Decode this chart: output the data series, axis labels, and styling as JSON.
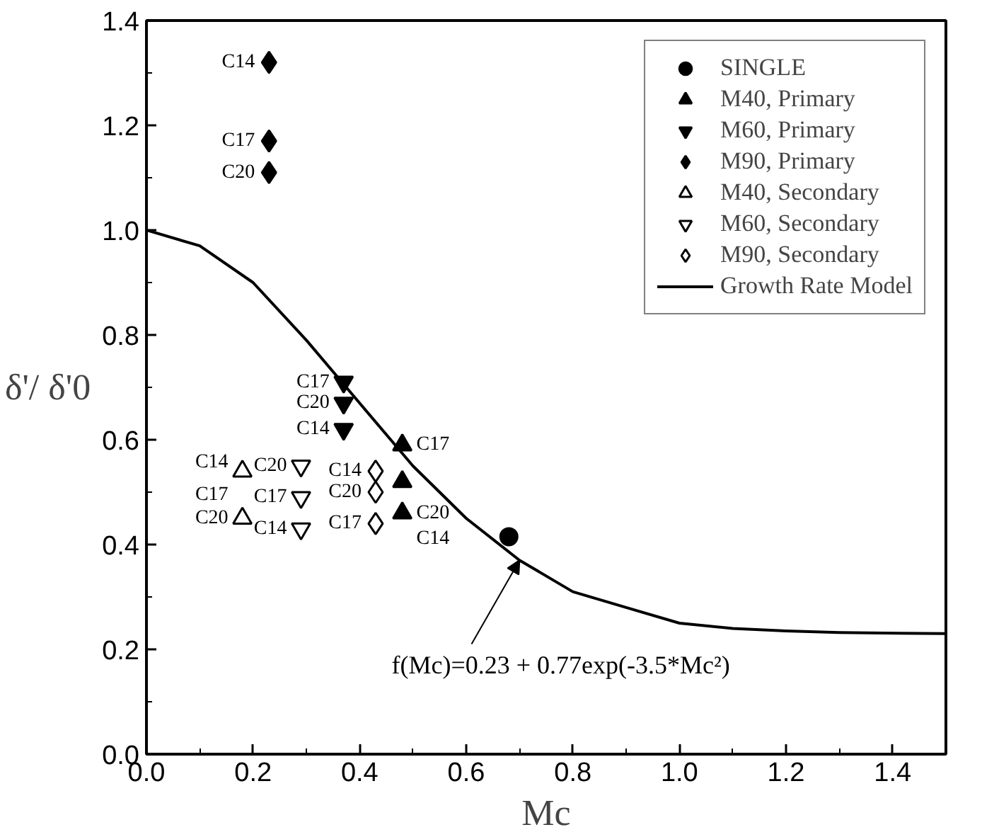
{
  "chart_data": {
    "type": "scatter",
    "xlabel": "Mc",
    "ylabel": "δ'/ δ'0",
    "xlim": [
      0,
      1.5
    ],
    "ylim": [
      0,
      1.4
    ],
    "xticks": [
      {
        "value": 0,
        "label": "0.0"
      },
      0.2,
      0.4,
      0.6,
      0.8,
      {
        "value": 1,
        "label": "1.0"
      },
      1.2,
      1.4
    ],
    "yticks": [
      {
        "value": 0,
        "label": "0.0"
      },
      0.2,
      0.4,
      0.6,
      0.8,
      {
        "value": 1,
        "label": "1.0"
      },
      1.2,
      1.4
    ],
    "grid": false,
    "legend": "top right",
    "series": [
      {
        "name": "SINGLE",
        "color": "#000000",
        "marker": "circle",
        "x": [
          0.68
        ],
        "values": [
          0.415
        ]
      },
      {
        "name": "M40, Primary",
        "color": "#000000",
        "marker": "triangle",
        "x": [
          0.48,
          0.48,
          0.48
        ],
        "values": [
          0.59,
          0.52,
          0.46
        ]
      },
      {
        "name": "M60, Primary",
        "color": "#000000",
        "marker": "triangle_down",
        "x": [
          0.37,
          0.37,
          0.37
        ],
        "values": [
          0.71,
          0.67,
          0.62
        ]
      },
      {
        "name": "M90, Primary",
        "color": "#000000",
        "marker": "diamond",
        "x": [
          0.23,
          0.23,
          0.23
        ],
        "values": [
          1.32,
          1.17,
          1.11
        ]
      },
      {
        "name": "M40, Secondary",
        "color": "#000000",
        "marker": "triangle_open",
        "x": [
          0.18,
          0.18
        ],
        "values": [
          0.54,
          0.45
        ]
      },
      {
        "name": "M60, Secondary",
        "color": "#000000",
        "marker": "triangle_down_open",
        "x": [
          0.29,
          0.29,
          0.29
        ],
        "values": [
          0.55,
          0.49,
          0.43
        ]
      },
      {
        "name": "M90, Secondary",
        "color": "#000000",
        "marker": "diamond_open",
        "x": [
          0.43,
          0.43,
          0.43
        ],
        "values": [
          0.54,
          0.5,
          0.44
        ]
      },
      {
        "name": "Growth Rate Model",
        "type": "line",
        "color": "#000000",
        "line_style": "solid",
        "x": [
          0,
          0.1,
          0.2,
          0.3,
          0.4,
          0.5,
          0.6,
          0.7,
          0.8,
          0.9,
          1.0,
          1.1,
          1.2,
          1.3,
          1.5
        ],
        "values": [
          1.0,
          0.97,
          0.9,
          0.79,
          0.67,
          0.55,
          0.45,
          0.37,
          0.31,
          0.28,
          0.25,
          0.24,
          0.235,
          0.232,
          0.23
        ]
      }
    ],
    "annotations": [
      {
        "text": "C14",
        "x": 0.23,
        "y": 1.32
      },
      {
        "text": "C17",
        "x": 0.23,
        "y": 1.17
      },
      {
        "text": "C20",
        "x": 0.23,
        "y": 1.11
      },
      {
        "text": "C17",
        "x": 0.37,
        "y": 0.71
      },
      {
        "text": "C20",
        "x": 0.37,
        "y": 0.67
      },
      {
        "text": "C14",
        "x": 0.37,
        "y": 0.62
      },
      {
        "text": "C17",
        "x": 0.48,
        "y": 0.59
      },
      {
        "text": "C20",
        "x": 0.48,
        "y": 0.46
      },
      {
        "text": "C14",
        "x": 0.48,
        "y": 0.46
      },
      {
        "text": "C14",
        "x": 0.18,
        "y": 0.54
      },
      {
        "text": "C17",
        "x": 0.18,
        "y": 0.54
      },
      {
        "text": "C20",
        "x": 0.18,
        "y": 0.45
      },
      {
        "text": "C20",
        "x": 0.29,
        "y": 0.55
      },
      {
        "text": "C17",
        "x": 0.29,
        "y": 0.49
      },
      {
        "text": "C14",
        "x": 0.29,
        "y": 0.43
      },
      {
        "text": "C14",
        "x": 0.43,
        "y": 0.54
      },
      {
        "text": "C20",
        "x": 0.43,
        "y": 0.5
      },
      {
        "text": "C17",
        "x": 0.43,
        "y": 0.44
      },
      {
        "text": "f(Mc)=0.23 + 0.77exp(-3.5*Mc²)",
        "x": 0.7,
        "y": 0.37
      }
    ]
  }
}
